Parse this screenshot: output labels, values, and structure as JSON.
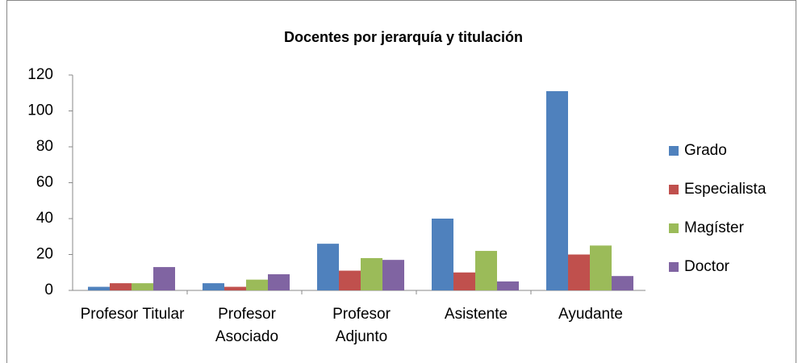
{
  "chart_data": {
    "type": "bar",
    "title": "Docentes por jerarquía y titulación",
    "categories": [
      "Profesor Titular",
      "Profesor Asociado",
      "Profesor Adjunto",
      "Asistente",
      "Ayudante"
    ],
    "series": [
      {
        "name": "Grado",
        "color": "#4f81bd",
        "values": [
          2,
          4,
          26,
          40,
          111
        ]
      },
      {
        "name": "Especialista",
        "color": "#c0504d",
        "values": [
          4,
          2,
          11,
          10,
          20
        ]
      },
      {
        "name": "Magíster",
        "color": "#9bbb59",
        "values": [
          4,
          6,
          18,
          22,
          25
        ]
      },
      {
        "name": "Doctor",
        "color": "#8064a2",
        "values": [
          13,
          9,
          17,
          5,
          8
        ]
      }
    ],
    "ylim": [
      0,
      120
    ],
    "yticks": [
      0,
      20,
      40,
      60,
      80,
      100,
      120
    ],
    "grid": false,
    "legend": "right"
  }
}
